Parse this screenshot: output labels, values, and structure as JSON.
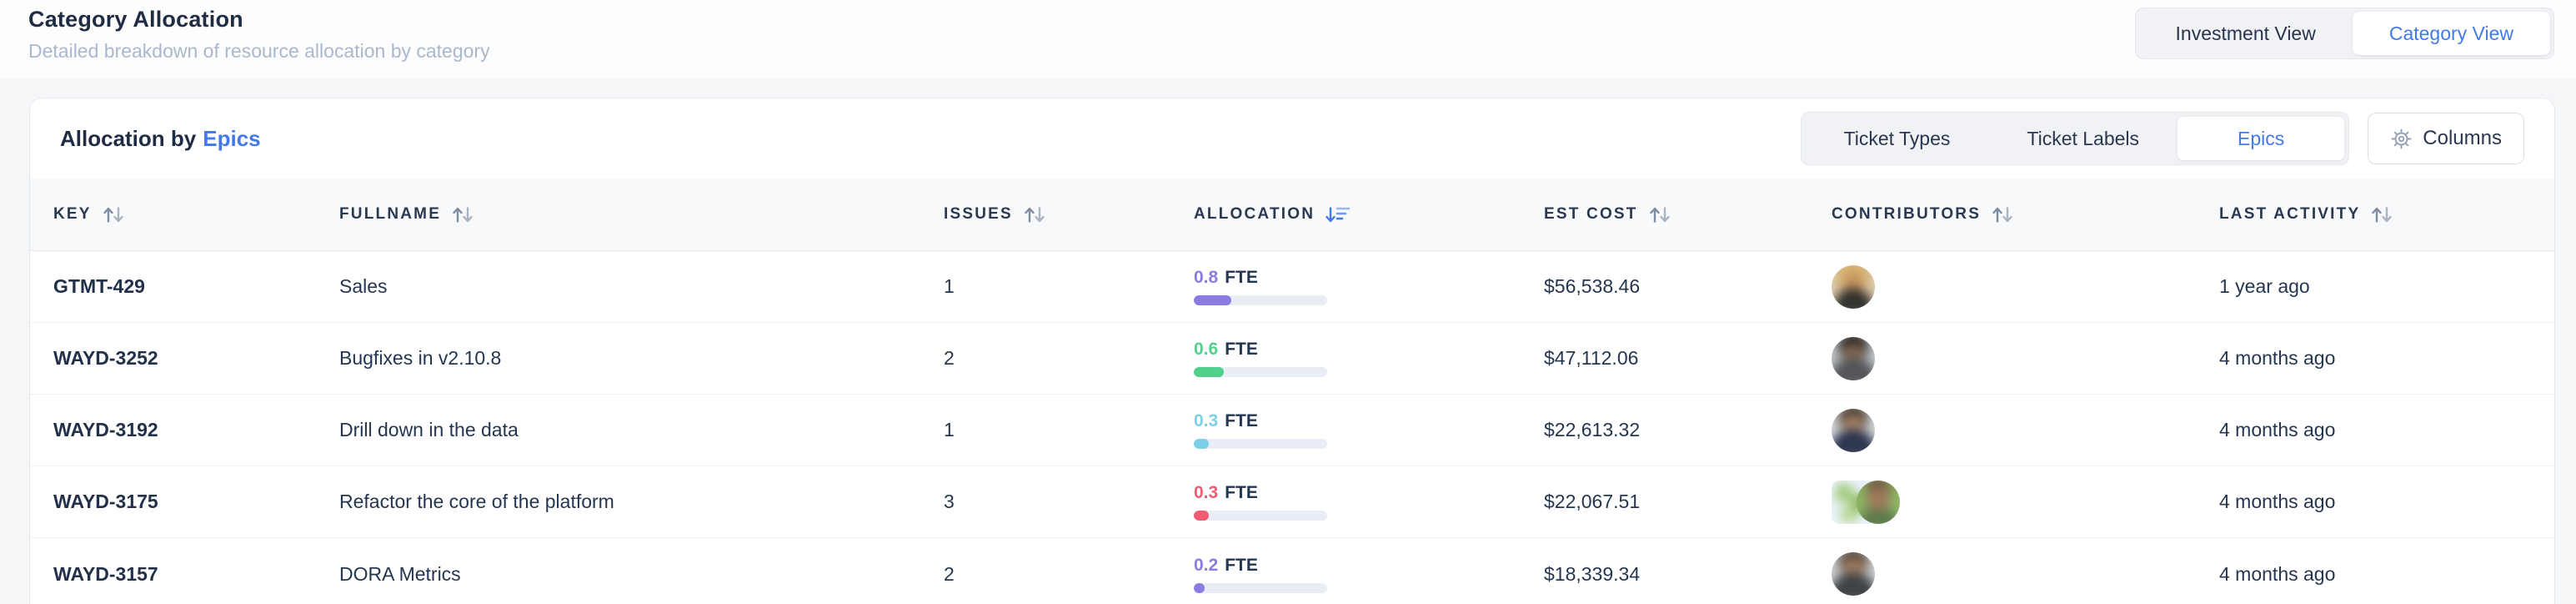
{
  "page": {
    "title": "Category Allocation",
    "subtitle": "Detailed breakdown of resource allocation by category"
  },
  "view_toggle": {
    "options": [
      {
        "label": "Investment View",
        "active": false
      },
      {
        "label": "Category View",
        "active": true
      }
    ]
  },
  "card": {
    "title_prefix": "Allocation by",
    "title_highlight": "Epics",
    "tabs": [
      {
        "label": "Ticket Types",
        "active": false
      },
      {
        "label": "Ticket Labels",
        "active": false
      },
      {
        "label": "Epics",
        "active": true
      }
    ],
    "columns_button": {
      "label": "Columns",
      "icon": "gear-icon"
    }
  },
  "table": {
    "headers": [
      {
        "label": "Key",
        "sort": "both"
      },
      {
        "label": "Fullname",
        "sort": "both"
      },
      {
        "label": "Issues",
        "sort": "both"
      },
      {
        "label": "Allocation",
        "sort": "desc-active"
      },
      {
        "label": "Est Cost",
        "sort": "both"
      },
      {
        "label": "Contributors",
        "sort": "both"
      },
      {
        "label": "Last Activity",
        "sort": "both"
      }
    ],
    "rows": [
      {
        "key": "GTMT-429",
        "fullname": "Sales",
        "issues": "1",
        "allocation": {
          "value": "0.8",
          "unit": "FTE",
          "color": "#8a7ce0",
          "bar_percent": 28
        },
        "est_cost": "$56,538.46",
        "contributors": [
          {
            "shape": "circle",
            "class": "p1"
          }
        ],
        "last_activity": "1 year ago"
      },
      {
        "key": "WAYD-3252",
        "fullname": "Bugfixes in v2.10.8",
        "issues": "2",
        "allocation": {
          "value": "0.6",
          "unit": "FTE",
          "color": "#52d18b",
          "bar_percent": 22.5
        },
        "est_cost": "$47,112.06",
        "contributors": [
          {
            "shape": "circle",
            "class": "p2"
          }
        ],
        "last_activity": "4 months ago"
      },
      {
        "key": "WAYD-3192",
        "fullname": "Drill down in the data",
        "issues": "1",
        "allocation": {
          "value": "0.3",
          "unit": "FTE",
          "color": "#7ecfe8",
          "bar_percent": 11
        },
        "est_cost": "$22,613.32",
        "contributors": [
          {
            "shape": "circle",
            "class": "p3"
          }
        ],
        "last_activity": "4 months ago"
      },
      {
        "key": "WAYD-3175",
        "fullname": "Refactor the core of the platform",
        "issues": "3",
        "allocation": {
          "value": "0.3",
          "unit": "FTE",
          "color": "#ef5b73",
          "bar_percent": 11
        },
        "est_cost": "$22,067.51",
        "contributors": [
          {
            "shape": "square",
            "class": "p4a"
          },
          {
            "shape": "circle",
            "class": "p4b"
          }
        ],
        "last_activity": "4 months ago"
      },
      {
        "key": "WAYD-3157",
        "fullname": "DORA Metrics",
        "issues": "2",
        "allocation": {
          "value": "0.2",
          "unit": "FTE",
          "color": "#8a7ce0",
          "bar_percent": 8
        },
        "est_cost": "$18,339.34",
        "contributors": [
          {
            "shape": "circle",
            "class": "p5"
          }
        ],
        "last_activity": "4 months ago"
      }
    ]
  },
  "colors": {
    "accent_blue": "#4379e8",
    "text_dark": "#22304a",
    "text_muted": "#a9b8cc",
    "bar_track": "#e9edf4"
  }
}
